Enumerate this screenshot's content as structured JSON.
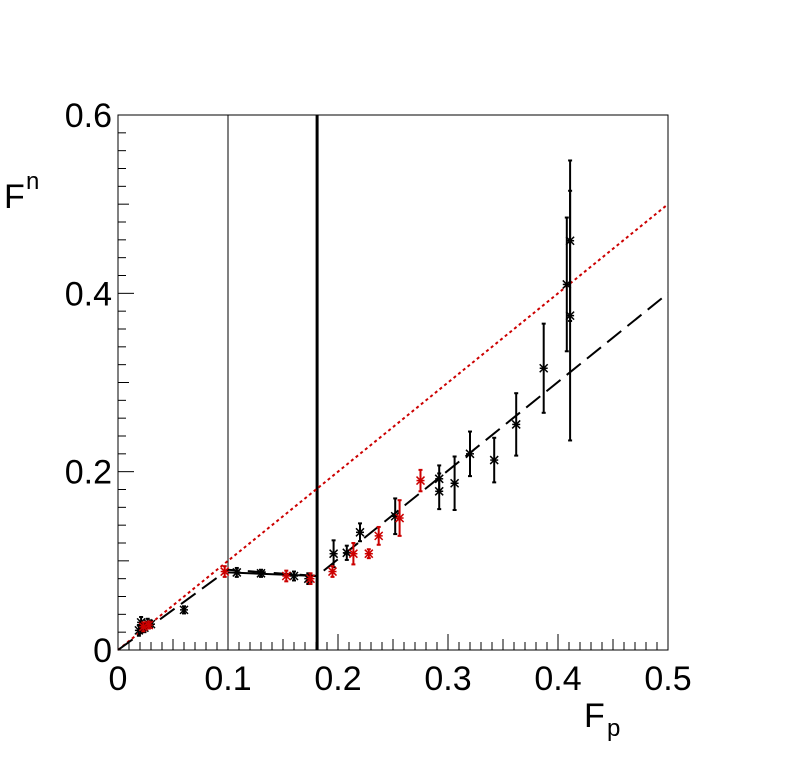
{
  "chart_data": {
    "type": "scatter",
    "xlabel": "F",
    "xlabel_sub": "p",
    "ylabel": "F",
    "ylabel_sub": "n",
    "xlim": [
      0,
      0.5
    ],
    "ylim": [
      0,
      0.6
    ],
    "x_ticks": [
      "0",
      "0.1",
      "0.2",
      "0.3",
      "0.4",
      "0.5"
    ],
    "y_ticks": [
      "0",
      "0.2",
      "0.4",
      "0.6"
    ],
    "grid": false,
    "vertical_lines": [
      {
        "x": 0.1,
        "style": "thin"
      },
      {
        "x": 0.181,
        "style": "thick"
      }
    ],
    "lines": [
      {
        "style": "dotted",
        "color": "#cc0000",
        "points": [
          [
            0,
            0
          ],
          [
            0.5,
            0.5
          ]
        ]
      },
      {
        "style": "dashed",
        "color": "#000000",
        "points": [
          [
            0,
            0
          ],
          [
            0.1,
            0.09
          ],
          [
            0.181,
            0.083
          ],
          [
            0.5,
            0.4
          ]
        ]
      },
      {
        "style": "solid",
        "color": "#000000",
        "points": [
          [
            0.1,
            0.087
          ],
          [
            0.181,
            0.083
          ]
        ]
      }
    ],
    "series": [
      {
        "color": "#000000",
        "marker": "asterisk",
        "points": [
          {
            "x": 0.019,
            "y": 0.022,
            "err": 0.006
          },
          {
            "x": 0.021,
            "y": 0.031,
            "err": 0.006
          },
          {
            "x": 0.024,
            "y": 0.025,
            "err": 0.005
          },
          {
            "x": 0.027,
            "y": 0.03,
            "err": 0.005
          },
          {
            "x": 0.03,
            "y": 0.029,
            "err": 0.004
          },
          {
            "x": 0.06,
            "y": 0.045,
            "err": 0.004
          },
          {
            "x": 0.108,
            "y": 0.087,
            "err": 0.005
          },
          {
            "x": 0.13,
            "y": 0.086,
            "err": 0.004
          },
          {
            "x": 0.16,
            "y": 0.083,
            "err": 0.005
          },
          {
            "x": 0.173,
            "y": 0.08,
            "err": 0.006
          },
          {
            "x": 0.196,
            "y": 0.108,
            "err": 0.015
          },
          {
            "x": 0.208,
            "y": 0.109,
            "err": 0.008
          },
          {
            "x": 0.22,
            "y": 0.132,
            "err": 0.01
          },
          {
            "x": 0.252,
            "y": 0.15,
            "err": 0.02
          },
          {
            "x": 0.292,
            "y": 0.178,
            "err": 0.02
          },
          {
            "x": 0.292,
            "y": 0.192,
            "err": 0.015
          },
          {
            "x": 0.306,
            "y": 0.187,
            "err": 0.03
          },
          {
            "x": 0.32,
            "y": 0.22,
            "err": 0.025
          },
          {
            "x": 0.342,
            "y": 0.213,
            "err": 0.025
          },
          {
            "x": 0.362,
            "y": 0.253,
            "err": 0.035
          },
          {
            "x": 0.387,
            "y": 0.316,
            "err": 0.05
          },
          {
            "x": 0.408,
            "y": 0.41,
            "err": 0.075
          },
          {
            "x": 0.411,
            "y": 0.459,
            "err": 0.09
          },
          {
            "x": 0.411,
            "y": 0.375,
            "err": 0.14
          }
        ]
      },
      {
        "color": "#cc0000",
        "marker": "cross",
        "points": [
          {
            "x": 0.023,
            "y": 0.026,
            "err": 0.005
          },
          {
            "x": 0.028,
            "y": 0.028,
            "err": 0.004
          },
          {
            "x": 0.097,
            "y": 0.088,
            "err": 0.006
          },
          {
            "x": 0.153,
            "y": 0.083,
            "err": 0.006
          },
          {
            "x": 0.175,
            "y": 0.08,
            "err": 0.006
          },
          {
            "x": 0.195,
            "y": 0.088,
            "err": 0.006
          },
          {
            "x": 0.214,
            "y": 0.108,
            "err": 0.012
          },
          {
            "x": 0.228,
            "y": 0.108,
            "err": 0.005
          },
          {
            "x": 0.237,
            "y": 0.128,
            "err": 0.01
          },
          {
            "x": 0.256,
            "y": 0.148,
            "err": 0.02
          },
          {
            "x": 0.275,
            "y": 0.19,
            "err": 0.012
          }
        ]
      }
    ]
  }
}
